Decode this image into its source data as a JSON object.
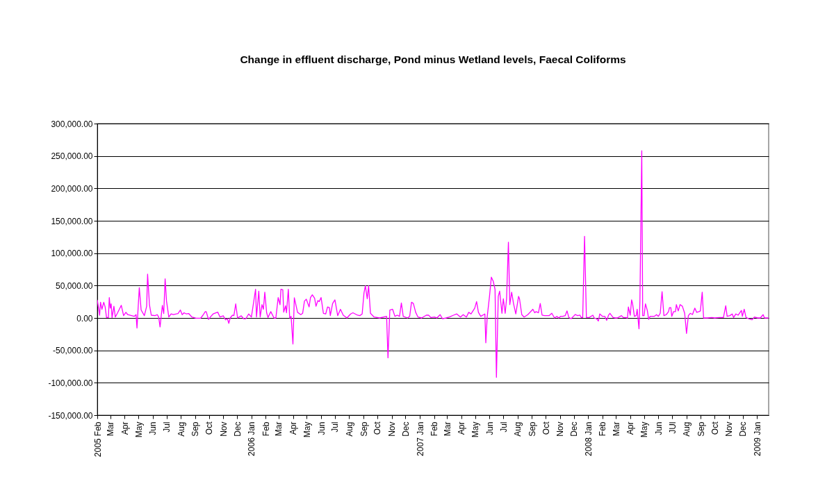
{
  "chart_data": {
    "type": "line",
    "title": "Change in effluent discharge, Pond minus Wetland levels, Faecal Coliforms",
    "x": [
      "2005-02-01",
      "2005-02-06",
      "2005-02-08",
      "2005-02-11",
      "2005-02-15",
      "2005-02-18",
      "2005-02-21",
      "2005-02-25",
      "2005-02-27",
      "2005-03-01",
      "2005-03-03",
      "2005-03-05",
      "2005-03-09",
      "2005-03-12",
      "2005-03-17",
      "2005-03-25",
      "2005-03-30",
      "2005-04-04",
      "2005-04-08",
      "2005-04-22",
      "2005-04-26",
      "2005-04-28",
      "2005-05-03",
      "2005-05-07",
      "2005-05-14",
      "2005-05-19",
      "2005-05-21",
      "2005-05-25",
      "2005-05-29",
      "2005-06-06",
      "2005-06-11",
      "2005-06-14",
      "2005-06-17",
      "2005-06-22",
      "2005-06-25",
      "2005-06-28",
      "2005-07-01",
      "2005-07-06",
      "2005-07-11",
      "2005-07-16",
      "2005-07-26",
      "2005-07-31",
      "2005-08-04",
      "2005-08-08",
      "2005-08-13",
      "2005-08-18",
      "2005-08-25",
      "2005-09-03",
      "2005-09-13",
      "2005-09-18",
      "2005-09-23",
      "2005-09-25",
      "2005-09-30",
      "2005-10-04",
      "2005-10-10",
      "2005-10-20",
      "2005-10-25",
      "2005-11-01",
      "2005-11-06",
      "2005-11-10",
      "2005-11-13",
      "2005-11-16",
      "2005-11-21",
      "2005-11-24",
      "2005-11-28",
      "2005-12-02",
      "2005-12-10",
      "2005-12-15",
      "2005-12-20",
      "2005-12-26",
      "2006-01-01",
      "2006-01-10",
      "2006-01-12",
      "2006-01-17",
      "2006-01-20",
      "2006-01-24",
      "2006-01-27",
      "2006-01-30",
      "2006-02-03",
      "2006-02-06",
      "2006-02-12",
      "2006-02-19",
      "2006-02-23",
      "2006-02-28",
      "2006-03-04",
      "2006-03-06",
      "2006-03-10",
      "2006-03-12",
      "2006-03-16",
      "2006-03-18",
      "2006-03-22",
      "2006-03-25",
      "2006-03-28",
      "2006-04-01",
      "2006-04-04",
      "2006-04-11",
      "2006-04-18",
      "2006-04-22",
      "2006-04-26",
      "2006-04-30",
      "2006-05-06",
      "2006-05-09",
      "2006-05-13",
      "2006-05-18",
      "2006-05-21",
      "2006-05-25",
      "2006-05-28",
      "2006-06-01",
      "2006-06-06",
      "2006-06-11",
      "2006-06-15",
      "2006-06-19",
      "2006-06-21",
      "2006-06-26",
      "2006-07-01",
      "2006-07-07",
      "2006-07-13",
      "2006-07-19",
      "2006-07-27",
      "2006-08-04",
      "2006-08-09",
      "2006-08-14",
      "2006-08-19",
      "2006-08-24",
      "2006-08-29",
      "2006-09-02",
      "2006-09-05",
      "2006-09-09",
      "2006-09-12",
      "2006-09-16",
      "2006-09-24",
      "2006-10-06",
      "2006-10-21",
      "2006-10-24",
      "2006-10-28",
      "2006-11-03",
      "2006-11-08",
      "2006-11-13",
      "2006-11-18",
      "2006-11-22",
      "2006-11-26",
      "2006-12-05",
      "2006-12-10",
      "2006-12-14",
      "2006-12-18",
      "2006-12-23",
      "2006-12-28",
      "2007-01-05",
      "2007-01-15",
      "2007-01-20",
      "2007-01-25",
      "2007-02-02",
      "2007-02-07",
      "2007-02-14",
      "2007-02-19",
      "2007-02-27",
      "2007-03-06",
      "2007-03-15",
      "2007-03-22",
      "2007-03-30",
      "2007-04-05",
      "2007-04-12",
      "2007-04-17",
      "2007-04-22",
      "2007-04-30",
      "2007-05-04",
      "2007-05-08",
      "2007-05-13",
      "2007-05-22",
      "2007-05-24",
      "2007-05-27",
      "2007-06-01",
      "2007-06-05",
      "2007-06-09",
      "2007-06-13",
      "2007-06-16",
      "2007-06-20",
      "2007-06-23",
      "2007-06-28",
      "2007-07-01",
      "2007-07-05",
      "2007-07-08",
      "2007-07-12",
      "2007-07-15",
      "2007-07-19",
      "2007-07-23",
      "2007-07-28",
      "2007-08-03",
      "2007-08-05",
      "2007-08-10",
      "2007-08-15",
      "2007-08-23",
      "2007-09-03",
      "2007-09-07",
      "2007-09-10",
      "2007-09-15",
      "2007-09-19",
      "2007-09-23",
      "2007-09-28",
      "2007-10-08",
      "2007-10-14",
      "2007-10-20",
      "2007-10-25",
      "2007-10-29",
      "2007-11-02",
      "2007-11-07",
      "2007-11-12",
      "2007-11-16",
      "2007-11-20",
      "2007-11-25",
      "2007-11-30",
      "2007-12-04",
      "2007-12-09",
      "2007-12-14",
      "2007-12-17",
      "2007-12-20",
      "2007-12-24",
      "2007-12-28",
      "2008-01-03",
      "2008-01-11",
      "2008-01-14",
      "2008-01-19",
      "2008-01-23",
      "2008-01-26",
      "2008-02-01",
      "2008-02-06",
      "2008-02-10",
      "2008-02-14",
      "2008-02-17",
      "2008-02-24",
      "2008-02-29",
      "2008-03-04",
      "2008-03-13",
      "2008-03-17",
      "2008-03-22",
      "2008-03-26",
      "2008-03-28",
      "2008-04-01",
      "2008-04-04",
      "2008-04-06",
      "2008-04-10",
      "2008-04-14",
      "2008-04-16",
      "2008-04-20",
      "2008-04-22",
      "2008-04-26",
      "2008-04-28",
      "2008-05-01",
      "2008-05-04",
      "2008-05-08",
      "2008-05-11",
      "2008-05-14",
      "2008-05-18",
      "2008-05-23",
      "2008-05-28",
      "2008-06-01",
      "2008-06-05",
      "2008-06-09",
      "2008-06-13",
      "2008-06-18",
      "2008-06-23",
      "2008-06-25",
      "2008-06-28",
      "2008-06-30",
      "2008-07-04",
      "2008-07-08",
      "2008-07-10",
      "2008-07-14",
      "2008-07-18",
      "2008-07-23",
      "2008-07-28",
      "2008-08-01",
      "2008-08-05",
      "2008-08-09",
      "2008-08-14",
      "2008-08-19",
      "2008-08-23",
      "2008-08-28",
      "2008-08-31",
      "2008-09-04",
      "2008-09-07",
      "2008-09-15",
      "2008-09-25",
      "2008-10-01",
      "2008-10-11",
      "2008-10-20",
      "2008-10-25",
      "2008-10-28",
      "2008-11-03",
      "2008-11-08",
      "2008-11-11",
      "2008-11-16",
      "2008-11-21",
      "2008-11-28",
      "2008-11-30",
      "2008-12-04",
      "2008-12-08",
      "2008-12-14",
      "2008-12-21",
      "2008-12-26",
      "2009-01-02",
      "2009-01-08",
      "2009-01-14",
      "2009-01-17",
      "2009-01-26"
    ],
    "series": [
      {
        "color": "#ff00ff",
        "values": [
          27900,
          4300,
          24300,
          13400,
          24300,
          17000,
          700,
          700,
          31500,
          15200,
          21700,
          700,
          18100,
          1400,
          8000,
          19500,
          3600,
          8700,
          5100,
          2500,
          5100,
          -15600,
          46700,
          12300,
          3600,
          18100,
          67700,
          20600,
          4300,
          3600,
          5100,
          1400,
          -13800,
          19500,
          6900,
          60500,
          26100,
          1400,
          6200,
          5100,
          6900,
          12300,
          5100,
          8000,
          6200,
          6900,
          1400,
          -400,
          -400,
          4300,
          9800,
          9800,
          -2200,
          1400,
          6200,
          9000,
          1400,
          3300,
          -2900,
          -1100,
          -8300,
          0,
          4300,
          3600,
          21700,
          0,
          3300,
          -1100,
          -1100,
          6200,
          1400,
          44200,
          1400,
          41300,
          1400,
          20600,
          13400,
          39800,
          8000,
          700,
          9800,
          0,
          0,
          31500,
          20600,
          44200,
          43400,
          9000,
          18800,
          8000,
          44200,
          0,
          2500,
          -40200,
          31100,
          8700,
          5100,
          7200,
          26100,
          29000,
          17000,
          31500,
          35800,
          30400,
          18100,
          26800,
          25300,
          31500,
          7200,
          6200,
          17000,
          15900,
          3600,
          22400,
          27900,
          3600,
          13400,
          4300,
          0,
          6200,
          8000,
          6200,
          4300,
          3600,
          6200,
          38700,
          49600,
          29700,
          49600,
          7200,
          1400,
          0,
          2500,
          -61500,
          12300,
          13400,
          2500,
          4300,
          2500,
          23200,
          2500,
          0,
          2500,
          24300,
          22400,
          8700,
          1400,
          0,
          4300,
          4300,
          700,
          1400,
          0,
          5100,
          -1100,
          0,
          1400,
          4300,
          6200,
          1400,
          5100,
          1400,
          8700,
          6200,
          15200,
          25300,
          8700,
          2500,
          6200,
          -38400,
          1400,
          33300,
          63000,
          56800,
          44200,
          -91600,
          33300,
          41300,
          7200,
          29700,
          7200,
          29700,
          117000,
          20600,
          39800,
          22400,
          6200,
          33300,
          29700,
          5100,
          1400,
          5100,
          13400,
          8000,
          9800,
          8000,
          22400,
          4300,
          3600,
          3600,
          7200,
          0,
          2500,
          0,
          2500,
          2500,
          3600,
          10900,
          700,
          -1100,
          2500,
          5400,
          3600,
          4300,
          700,
          700,
          126000,
          700,
          700,
          4300,
          0,
          -1100,
          -4700,
          6200,
          2500,
          2500,
          -3600,
          4300,
          7200,
          700,
          0,
          0,
          3600,
          700,
          700,
          0,
          17000,
          4300,
          27900,
          22400,
          2500,
          3600,
          13400,
          -16700,
          26100,
          258000,
          3600,
          3600,
          21700,
          11600,
          -2200,
          2500,
          2500,
          2500,
          5100,
          2500,
          7200,
          40500,
          3600,
          5100,
          9800,
          15900,
          15900,
          2500,
          9800,
          9800,
          20600,
          10900,
          20600,
          18100,
          7200,
          -23900,
          3600,
          7200,
          5400,
          15200,
          8700,
          9800,
          10900,
          39800,
          0,
          0,
          700,
          0,
          700,
          700,
          18800,
          2500,
          3600,
          6200,
          700,
          6200,
          4300,
          11600,
          2500,
          13400,
          700,
          -1100,
          -2900,
          1400,
          0,
          0,
          5100,
          0,
          0
        ]
      }
    ],
    "xlim": [
      "2005-02-01",
      "2009-01-26"
    ],
    "xticks": [
      {
        "value": "2005-02-01",
        "label": "2005 Feb"
      },
      {
        "value": "2005-03-01",
        "label": "Mar"
      },
      {
        "value": "2005-04-01",
        "label": "Apr"
      },
      {
        "value": "2005-05-01",
        "label": "May"
      },
      {
        "value": "2005-06-01",
        "label": "Jun"
      },
      {
        "value": "2005-07-01",
        "label": "Jul"
      },
      {
        "value": "2005-08-01",
        "label": "Aug"
      },
      {
        "value": "2005-09-01",
        "label": "Sep"
      },
      {
        "value": "2005-10-01",
        "label": "Oct"
      },
      {
        "value": "2005-11-01",
        "label": "Nov"
      },
      {
        "value": "2005-12-01",
        "label": "Dec"
      },
      {
        "value": "2006-01-01",
        "label": "2006 Jan"
      },
      {
        "value": "2006-02-01",
        "label": "Feb"
      },
      {
        "value": "2006-03-01",
        "label": "Mar"
      },
      {
        "value": "2006-04-01",
        "label": "Apr"
      },
      {
        "value": "2006-05-01",
        "label": "May"
      },
      {
        "value": "2006-06-01",
        "label": "Jun"
      },
      {
        "value": "2006-07-01",
        "label": "Jul"
      },
      {
        "value": "2006-08-01",
        "label": "Aug"
      },
      {
        "value": "2006-09-01",
        "label": "Sep"
      },
      {
        "value": "2006-10-01",
        "label": "Oct"
      },
      {
        "value": "2006-11-01",
        "label": "Nov"
      },
      {
        "value": "2006-12-01",
        "label": "Dec"
      },
      {
        "value": "2007-01-01",
        "label": "2007 Jan"
      },
      {
        "value": "2007-02-01",
        "label": "Feb"
      },
      {
        "value": "2007-03-01",
        "label": "Mar"
      },
      {
        "value": "2007-04-01",
        "label": "Apr"
      },
      {
        "value": "2007-05-01",
        "label": "May"
      },
      {
        "value": "2007-06-01",
        "label": "Jun"
      },
      {
        "value": "2007-07-01",
        "label": "Jul"
      },
      {
        "value": "2007-08-01",
        "label": "Aug"
      },
      {
        "value": "2007-09-01",
        "label": "Sep"
      },
      {
        "value": "2007-10-01",
        "label": "Oct"
      },
      {
        "value": "2007-11-01",
        "label": "Nov"
      },
      {
        "value": "2007-12-01",
        "label": "Dec"
      },
      {
        "value": "2008-01-01",
        "label": "2008 Jan"
      },
      {
        "value": "2008-02-01",
        "label": "Feb"
      },
      {
        "value": "2008-03-01",
        "label": "Mar"
      },
      {
        "value": "2008-04-01",
        "label": "Apr"
      },
      {
        "value": "2008-05-01",
        "label": "May"
      },
      {
        "value": "2008-06-01",
        "label": "Jun"
      },
      {
        "value": "2008-07-01",
        "label": "JUl"
      },
      {
        "value": "2008-08-01",
        "label": "Aug"
      },
      {
        "value": "2008-09-01",
        "label": "Sep"
      },
      {
        "value": "2008-10-01",
        "label": "Oct"
      },
      {
        "value": "2008-11-01",
        "label": "Nov"
      },
      {
        "value": "2008-12-01",
        "label": "Dec"
      },
      {
        "value": "2009-01-01",
        "label": "2009 Jan"
      }
    ],
    "ylim": [
      -150000,
      300000
    ],
    "yticks": [
      {
        "value": -150000,
        "label": "-150,000.00"
      },
      {
        "value": -100000,
        "label": "-100,000.00"
      },
      {
        "value": -50000,
        "label": "-50,000.00"
      },
      {
        "value": 0,
        "label": "0.00"
      },
      {
        "value": 50000,
        "label": "50,000.00"
      },
      {
        "value": 100000,
        "label": "100,000.00"
      },
      {
        "value": 150000,
        "label": "150,000.00"
      },
      {
        "value": 200000,
        "label": "200,000.00"
      },
      {
        "value": 250000,
        "label": "250,000.00"
      },
      {
        "value": 300000,
        "label": "300,000.00"
      }
    ],
    "grid": "y",
    "line_style": "solid"
  }
}
